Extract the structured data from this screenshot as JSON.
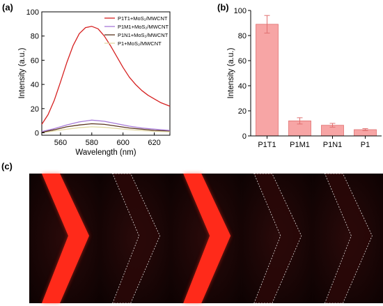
{
  "panel_labels": {
    "a": "(a)",
    "b": "(b)",
    "c": "(c)"
  },
  "chart_data": [
    {
      "type": "line",
      "panel": "(a)",
      "xlabel": "Wavelength (nm)",
      "ylabel": "Intensity (a.u.)",
      "xlim": [
        548,
        630
      ],
      "ylim": [
        -2,
        100
      ],
      "xticks": [
        "560",
        "580",
        "600",
        "620"
      ],
      "yticks": [
        "0",
        "20",
        "40",
        "60",
        "80",
        "100"
      ],
      "legend_position": "top-right",
      "grid": false,
      "series": [
        {
          "name": "P1T1+MoS₂/MWCNT",
          "color": "#d62020",
          "x": [
            548,
            552,
            556,
            560,
            564,
            568,
            572,
            576,
            580,
            584,
            588,
            592,
            596,
            600,
            604,
            608,
            612,
            616,
            620,
            624,
            628,
            630
          ],
          "y": [
            7,
            15,
            27,
            42,
            58,
            72,
            82,
            87,
            88,
            86,
            80,
            72,
            63,
            54,
            46,
            40,
            35,
            31,
            28,
            25,
            23,
            22
          ]
        },
        {
          "name": "P1M1+MoS₂/MWCNT",
          "color": "#a77ad8",
          "x": [
            548,
            556,
            564,
            572,
            580,
            588,
            596,
            604,
            612,
            620,
            630
          ],
          "y": [
            1,
            3.5,
            6.5,
            9,
            10.5,
            9.5,
            7.5,
            5.5,
            4,
            3,
            2
          ]
        },
        {
          "name": "P1N1+MoS₂/MWCNT",
          "color": "#5a3520",
          "x": [
            548,
            556,
            564,
            572,
            580,
            588,
            596,
            604,
            612,
            620,
            630
          ],
          "y": [
            0.5,
            2.5,
            5,
            6.5,
            7.5,
            7,
            5.5,
            4,
            3,
            2,
            1.5
          ]
        },
        {
          "name": "P1+MoS₂/MWCNT",
          "color": "#e2d9a4",
          "x": [
            548,
            556,
            564,
            572,
            580,
            588,
            596,
            604,
            612,
            620,
            630
          ],
          "y": [
            0,
            1.5,
            3,
            4.2,
            5,
            4.5,
            3.6,
            2.6,
            1.8,
            1.2,
            0.8
          ]
        }
      ]
    },
    {
      "type": "bar",
      "panel": "(b)",
      "ylabel": "Intensity (a.u.)",
      "categories": [
        "P1T1",
        "P1M1",
        "P1N1",
        "P1"
      ],
      "values": [
        89,
        12,
        8.5,
        5
      ],
      "errors": [
        7,
        2.5,
        1.5,
        0.8
      ],
      "ylim": [
        0,
        100
      ],
      "yticks": [
        "0",
        "20",
        "40",
        "60",
        "80",
        "100"
      ],
      "bar_color": "#f7a5a5",
      "bar_edge": "#e07070"
    }
  ],
  "images_panel": {
    "tiles": 5,
    "bright_tiles": [
      0,
      2
    ],
    "background_color": "#1a0606",
    "glow_color": "#ff2a1a",
    "outline_color": "#ffffff"
  }
}
